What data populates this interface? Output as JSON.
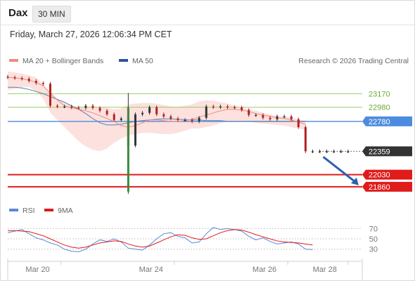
{
  "header": {
    "symbol": "Dax",
    "timeframe": "30 MIN",
    "datetime": "Friday, March 27, 2026 12:06:34 PM CET"
  },
  "colors": {
    "ma20": "#f08a80",
    "bollinger_fill": "#fbdcd8",
    "ma50": "#5a7fb0",
    "candle_up": "#333333",
    "candle_down": "#b22222",
    "green_level": "#9bcf6b",
    "blue_level": "#4d8be0",
    "red_level": "#e01b1b",
    "rsi": "#5a88d8",
    "rsi_ma": "#e01b1b",
    "arrow": "#2f5fb0"
  },
  "chart_data": [
    {
      "type": "line",
      "title": "",
      "legend": [
        {
          "name": "MA 20 + Bollinger Bands",
          "color": "#f08a80"
        },
        {
          "name": "MA 50",
          "color": "#2f5597"
        }
      ],
      "attribution": "Research © 2026 Trading Central",
      "x": [
        0,
        2,
        4,
        6,
        8,
        10,
        12,
        14,
        16,
        18,
        20,
        22,
        24,
        26,
        28,
        30,
        32,
        34,
        36,
        38,
        40,
        42,
        44,
        46,
        48,
        50,
        52,
        54,
        56,
        58,
        60,
        62,
        64,
        66,
        68,
        70,
        72,
        74,
        76,
        78,
        80,
        82,
        84,
        86,
        88,
        90,
        92,
        94,
        96
      ],
      "x_ticks": [
        {
          "x": 15,
          "label": "Mar 20"
        },
        {
          "x": 47,
          "label": "Mar 24"
        },
        {
          "x": 79,
          "label": "Mar 26"
        },
        {
          "x": 96,
          "label": "Mar 28"
        }
      ],
      "candle_close": [
        23400,
        23390,
        23380,
        23350,
        23320,
        23310,
        23000,
        22990,
        22990,
        22975,
        22970,
        23000,
        22970,
        22930,
        22880,
        22800,
        22820,
        22440,
        22880,
        22900,
        22980,
        22880,
        22850,
        22820,
        22800,
        22800,
        22780,
        22830,
        22990,
        22980,
        22990,
        22980,
        22975,
        22940,
        22870,
        22870,
        22830,
        22810,
        22850,
        22850,
        22810,
        22700,
        22359,
        22359,
        22359,
        22359,
        22359,
        22359,
        22359
      ],
      "ma20": [
        23400,
        23395,
        23380,
        23360,
        23330,
        23280,
        23180,
        23080,
        23000,
        22970,
        22950,
        22930,
        22900,
        22860,
        22820,
        22780,
        22720,
        22700,
        22720,
        22760,
        22800,
        22800,
        22790,
        22780,
        22780,
        22790,
        22810,
        22840,
        22870,
        22900,
        22930,
        22950,
        22950,
        22940,
        22920,
        22890,
        22870,
        22850,
        22830,
        22820,
        22800,
        22770,
        22740,
        null,
        null,
        null,
        null,
        null,
        null
      ],
      "ma50": [
        23260,
        23260,
        23250,
        23230,
        23200,
        23170,
        23130,
        23090,
        23050,
        23000,
        22950,
        22890,
        22820,
        22760,
        22730,
        22730,
        22740,
        22760,
        22780,
        22790,
        22800,
        22810,
        22815,
        22815,
        22810,
        22805,
        22800,
        22800,
        22790,
        22790,
        22790,
        22780,
        22780,
        22780,
        22780,
        22780,
        22780,
        22780,
        22780,
        22780,
        22780,
        22780,
        22780,
        null,
        null,
        null,
        null,
        null,
        null
      ],
      "bollinger_upper": [
        23480,
        23470,
        23450,
        23430,
        23400,
        23300,
        23180,
        23100,
        23040,
        23000,
        22990,
        22990,
        22990,
        22980,
        22970,
        22950,
        22960,
        23020,
        23030,
        23040,
        23040,
        23030,
        23010,
        22990,
        22990,
        23000,
        23020,
        23060,
        23080,
        23070,
        23050,
        23030,
        23000,
        22980,
        22950,
        22930,
        22900,
        22880,
        22860,
        22850,
        22840,
        22800,
        22790,
        null,
        null,
        null,
        null,
        null,
        null
      ],
      "bollinger_lower": [
        23220,
        23240,
        23260,
        23270,
        23200,
        23100,
        22900,
        22800,
        22700,
        22600,
        22500,
        22430,
        22380,
        22360,
        22400,
        22480,
        22540,
        22580,
        22600,
        22620,
        22620,
        22610,
        22600,
        22600,
        22620,
        22650,
        22680,
        22680,
        22700,
        22720,
        22760,
        22780,
        22790,
        22790,
        22780,
        22760,
        22750,
        22740,
        22730,
        22720,
        22700,
        22680,
        22660,
        null,
        null,
        null,
        null,
        null,
        null
      ],
      "y_unit": "points",
      "price_levels": [
        {
          "label": "23170",
          "value": 23170,
          "kind": "resistance"
        },
        {
          "label": "22980",
          "value": 22980,
          "kind": "resistance"
        },
        {
          "label": "22780",
          "value": 22780,
          "kind": "pivot"
        },
        {
          "label": "22359",
          "value": 22359,
          "kind": "last_price"
        },
        {
          "label": "22030",
          "value": 22030,
          "kind": "target"
        },
        {
          "label": "21860",
          "value": 21860,
          "kind": "target"
        }
      ],
      "forecast_arrow": {
        "from": 22359,
        "to": 21860,
        "direction": "down"
      }
    },
    {
      "type": "line",
      "title": "",
      "legend": [
        {
          "name": "RSI",
          "color": "#5a88d8"
        },
        {
          "name": "9MA",
          "color": "#e01b1b"
        }
      ],
      "y_ticks": [
        "70",
        "50",
        "30"
      ],
      "ylim": [
        20,
        80
      ],
      "x": [
        0,
        2,
        4,
        6,
        8,
        10,
        12,
        14,
        16,
        18,
        20,
        22,
        24,
        26,
        28,
        30,
        32,
        34,
        36,
        38,
        40,
        42,
        44,
        46,
        48,
        50,
        52,
        54,
        56,
        58,
        60,
        62,
        64,
        66,
        68,
        70,
        72,
        74,
        76,
        78,
        80,
        82,
        84,
        86,
        88,
        90,
        92,
        94,
        96
      ],
      "rsi": [
        62,
        65,
        68,
        60,
        52,
        48,
        42,
        38,
        30,
        26,
        25,
        30,
        40,
        48,
        45,
        50,
        44,
        32,
        30,
        28,
        38,
        50,
        60,
        62,
        55,
        52,
        42,
        44,
        60,
        72,
        68,
        70,
        68,
        65,
        55,
        48,
        52,
        45,
        40,
        42,
        44,
        40,
        30,
        29,
        null,
        null,
        null,
        null,
        null
      ],
      "rsi_9ma": [
        66,
        66,
        65,
        64,
        60,
        56,
        50,
        44,
        38,
        34,
        32,
        34,
        38,
        42,
        44,
        46,
        45,
        40,
        36,
        34,
        36,
        42,
        48,
        54,
        58,
        57,
        52,
        49,
        50,
        56,
        62,
        66,
        68,
        67,
        63,
        58,
        54,
        50,
        46,
        44,
        43,
        42,
        40,
        38,
        null,
        null,
        null,
        null,
        null
      ]
    }
  ]
}
